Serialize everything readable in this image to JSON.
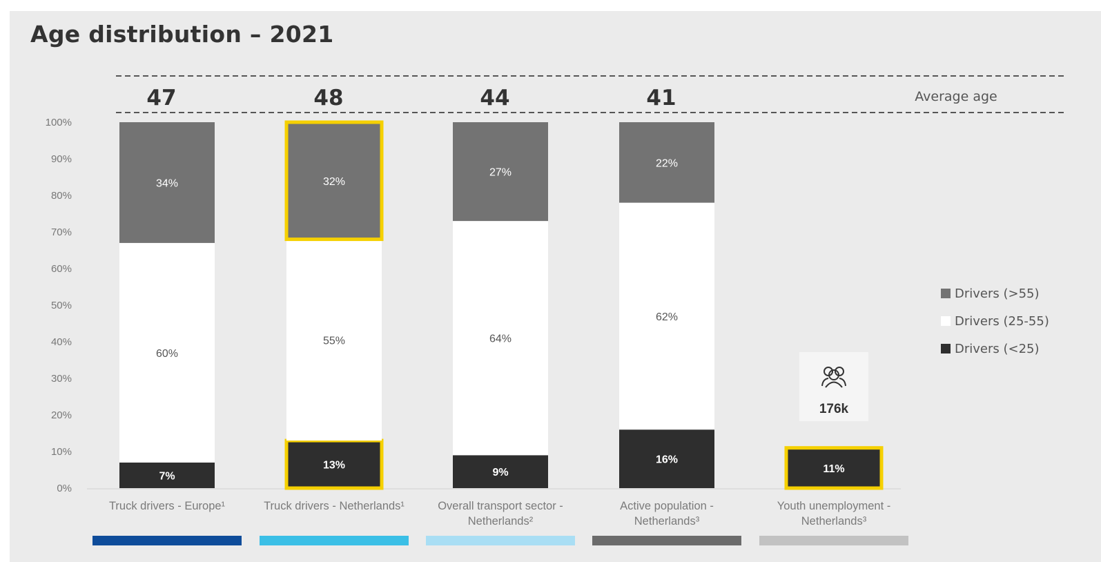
{
  "title": "Age distribution – 2021",
  "avg_age_label": "Average age",
  "highlight_color": "#f5d000",
  "icon": "people-icon",
  "chart_data": {
    "type": "bar",
    "stacked": true,
    "categories": [
      [
        "Truck drivers - Europe¹"
      ],
      [
        "Truck drivers - Netherlands¹"
      ],
      [
        "Overall transport sector -",
        "Netherlands²"
      ],
      [
        "Active population -",
        "Netherlands³"
      ],
      [
        "Youth unemployment -",
        "Netherlands³"
      ]
    ],
    "average_age": [
      "47",
      "48",
      "44",
      "41",
      null
    ],
    "series": [
      {
        "name": "Drivers (<25)",
        "color": "#2e2e2e",
        "text_color": "#ffffff",
        "values": [
          7,
          13,
          9,
          16,
          11
        ],
        "labels": [
          "7%",
          "13%",
          "9%",
          "16%",
          "11%"
        ]
      },
      {
        "name": "Drivers (25-55)",
        "color": "#ffffff",
        "text_color": "#555555",
        "values": [
          60,
          55,
          64,
          62,
          null
        ],
        "labels": [
          "60%",
          "55%",
          "64%",
          "62%",
          null
        ]
      },
      {
        "name": "Drivers (>55)",
        "color": "#737373",
        "text_color": "#ffffff",
        "values": [
          34,
          32,
          27,
          22,
          null
        ],
        "labels": [
          "34%",
          "32%",
          "27%",
          "22%",
          null
        ]
      }
    ],
    "highlighted": [
      {
        "category": 1,
        "series": 0
      },
      {
        "category": 1,
        "series": 2
      },
      {
        "category": 4,
        "series": 0
      }
    ],
    "ylim": [
      0,
      100
    ],
    "yticks": [
      "0%",
      "10%",
      "20%",
      "30%",
      "40%",
      "50%",
      "60%",
      "70%",
      "80%",
      "90%",
      "100%"
    ],
    "category_bar_colors": [
      "#0e4c9a",
      "#3bbfe6",
      "#a9def4",
      "#6b6b6b",
      "#c2c2c2"
    ],
    "callout": {
      "category": 4,
      "value_label": "176k"
    },
    "legend": [
      {
        "name": "Drivers (>55)",
        "color": "#737373"
      },
      {
        "name": "Drivers (25-55)",
        "color": "#ffffff"
      },
      {
        "name": "Drivers (<25)",
        "color": "#2e2e2e"
      }
    ],
    "legend_position": "right"
  }
}
